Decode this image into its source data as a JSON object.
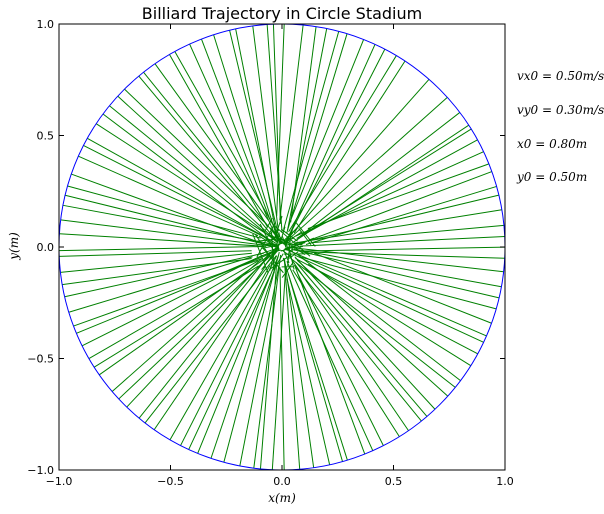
{
  "chart_data": {
    "type": "line",
    "title": "Billiard Trajectory in Circle Stadium",
    "xlabel": "x(m)",
    "ylabel": "y(m)",
    "xlim": [
      -1.0,
      1.0
    ],
    "ylim": [
      -1.0,
      1.0
    ],
    "xticks": [
      "−1.0",
      "−0.5",
      "0.0",
      "0.5",
      "1.0"
    ],
    "yticks": [
      "−1.0",
      "−0.5",
      "0.0",
      "0.5",
      "1.0"
    ],
    "grid": false,
    "boundary": {
      "shape": "circle",
      "center": [
        0,
        0
      ],
      "radius": 1.0,
      "color": "#0000ff"
    },
    "series": [
      {
        "name": "",
        "color": "#008000",
        "segments_from_center": 110,
        "center_cluster_radius": 0.15,
        "start_point": [
          -0.3,
          -0.13
        ],
        "end_point": [
          0.85,
          0.53
        ]
      }
    ],
    "marker": {
      "x": 0.0,
      "y": 0.0,
      "color": "#ffffff"
    },
    "annotations": [
      "v_{x0} = 0.50m/s",
      "v_{y0} = 0.30m/s",
      "x_0 = 0.80m",
      "y_0 = 0.50m"
    ]
  },
  "params": {
    "vx0": "vx0 = 0.50m/s",
    "vy0": "vy0 = 0.30m/s",
    "x0": "x0 = 0.80m",
    "y0": "y0 = 0.50m"
  }
}
